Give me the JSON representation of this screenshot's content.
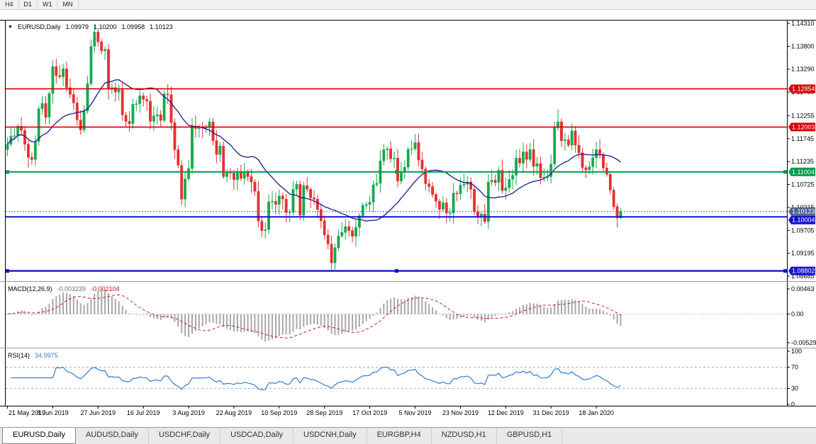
{
  "toolbar": {
    "buttons": [
      {
        "label": "H4"
      },
      {
        "label": "D1"
      },
      {
        "label": "W1"
      },
      {
        "label": "MN"
      }
    ]
  },
  "header": {
    "dropdown_icon": "▼",
    "symbol": "EURUSD,Daily",
    "open": "1.09979",
    "high": "1.10200",
    "low": "1.09958",
    "close": "1.10123"
  },
  "panels": {
    "macd_title": "MACD(12,26,9)",
    "macd_main": "-0.003239",
    "macd_signal": "-0.002104",
    "rsi_title": "RSI(14)",
    "rsi_value": "34.9975"
  },
  "tabs": {
    "items": [
      {
        "label": "EURUSD,Daily",
        "active": true
      },
      {
        "label": "AUDUSD,Daily",
        "active": false
      },
      {
        "label": "USDCHF,Daily",
        "active": false
      },
      {
        "label": "USDCAD,Daily",
        "active": false
      },
      {
        "label": "USDCNH,Daily",
        "active": false
      },
      {
        "label": "EURGBP,H4",
        "active": false
      },
      {
        "label": "NZDUSD,H1",
        "active": false
      },
      {
        "label": "GBPUSD,H1",
        "active": false
      }
    ]
  },
  "colors": {
    "bull": "#17a94f",
    "bear": "#e53030",
    "ma": "#1c1c8f",
    "macd_hist": "#a8a8a8",
    "macd_signal": "#cc2222",
    "rsi": "#2f7ed8",
    "rsi_level": "#9bb4cf",
    "level_red": "#d40000",
    "level_green": "#009a4e",
    "level_blue": "#1213cf",
    "bid": "#50618c",
    "panel_divider": "#9a9a9a"
  },
  "chart_data": {
    "type": "candlestick",
    "title": "EURUSD,Daily",
    "symbol": "EURUSD",
    "timeframe": "Daily",
    "ylim": [
      1.08685,
      1.1431
    ],
    "last_ohlc": {
      "open": 1.09979,
      "high": 1.102,
      "low": 1.09958,
      "close": 1.10123
    },
    "price_axis_labels": [
      "1.14310",
      "1.13800",
      "1.13290",
      "1.12780",
      "1.12255",
      "1.11745",
      "1.11235",
      "1.10725",
      "1.10215",
      "1.09705",
      "1.09195",
      "1.08685"
    ],
    "x_labels": [
      "21 May 2019",
      "8 Jun 2019",
      "27 Jun 2019",
      "16 Jul 2019",
      "3 Aug 2019",
      "22 Aug 2019",
      "10 Sep 2019",
      "28 Sep 2019",
      "17 Oct 2019",
      "5 Nov 2019",
      "23 Nov 2019",
      "12 Dec 2019",
      "31 Dec 2019",
      "18 Jan 2020"
    ],
    "first_open": 1.115,
    "closes": [
      1.1162,
      1.118,
      1.1181,
      1.1202,
      1.1193,
      1.1162,
      1.1133,
      1.1128,
      1.1168,
      1.1241,
      1.1253,
      1.1222,
      1.1275,
      1.1335,
      1.1315,
      1.1312,
      1.133,
      1.1288,
      1.1273,
      1.1254,
      1.1216,
      1.1194,
      1.1236,
      1.1297,
      1.138,
      1.1412,
      1.139,
      1.137,
      1.1373,
      1.1285,
      1.1288,
      1.1278,
      1.1283,
      1.1227,
      1.1213,
      1.1208,
      1.1251,
      1.1252,
      1.127,
      1.1262,
      1.1258,
      1.1213,
      1.1225,
      1.1228,
      1.1215,
      1.1274,
      1.1272,
      1.121,
      1.115,
      1.1115,
      1.104,
      1.1085,
      1.1108,
      1.1202,
      1.1197,
      1.12,
      1.1199,
      1.12,
      1.1212,
      1.117,
      1.1139,
      1.1158,
      1.109,
      1.11,
      1.1098,
      1.1083,
      1.11,
      1.1086,
      1.11,
      1.109,
      1.1078,
      1.1057,
      1.0991,
      1.097,
      1.0972,
      1.1034,
      1.1035,
      1.1028,
      1.1047,
      1.104,
      1.101,
      1.1011,
      1.1062,
      1.1073,
      1.1004,
      1.107,
      1.1062,
      1.1043,
      1.104,
      1.1017,
      1.0992,
      1.096,
      1.094,
      1.0898,
      1.0932,
      1.0958,
      1.0966,
      1.0979,
      1.097,
      1.0957,
      1.0977,
      1.1003,
      1.1026,
      1.1028,
      1.1033,
      1.1072,
      1.1075,
      1.1125,
      1.115,
      1.1152,
      1.113,
      1.1131,
      1.108,
      1.11,
      1.1111,
      1.1151,
      1.1152,
      1.1166,
      1.1127,
      1.1107,
      1.1074,
      1.1068,
      1.105,
      1.1035,
      1.1017,
      1.1032,
      1.1009,
      1.1009,
      1.1053,
      1.1052,
      1.1071,
      1.1073,
      1.1078,
      1.1062,
      1.1012,
      1.1002,
      1.1007,
      1.099,
      1.1078,
      1.1082,
      1.1077,
      1.1104,
      1.1059,
      1.1065,
      1.1084,
      1.1093,
      1.1131,
      1.112,
      1.1145,
      1.1128,
      1.115,
      1.1113,
      1.1119,
      1.1087,
      1.1088,
      1.109,
      1.1118,
      1.1199,
      1.1212,
      1.117,
      1.1172,
      1.116,
      1.1192,
      1.116,
      1.1143,
      1.111,
      1.1105,
      1.1112,
      1.1132,
      1.115,
      1.1139,
      1.1109,
      1.1095,
      1.106,
      1.1023,
      1.09979,
      1.10123
    ],
    "wick_overrides": {
      "25": {
        "high": 1.1428
      },
      "50": {
        "low": 1.1027
      },
      "93": {
        "low": 1.0879
      },
      "158": {
        "high": 1.1239
      },
      "176": {
        "high": 1.102,
        "low": 1.09958
      }
    },
    "overlays": {
      "sma_period": 20
    },
    "hlines": [
      {
        "label": "1.12854",
        "value": 1.12854,
        "color_key": "level_red",
        "width": 1.6,
        "selected": false
      },
      {
        "label": "1.12003",
        "value": 1.12003,
        "color_key": "level_red",
        "width": 1.6,
        "selected": false
      },
      {
        "label": "1.11004",
        "value": 1.11004,
        "color_key": "level_green",
        "width": 2,
        "selected": true
      },
      {
        "label": "1.10004",
        "value": 1.10004,
        "color_key": "level_blue",
        "width": 2,
        "selected": false
      },
      {
        "label": "1.08802",
        "value": 1.08802,
        "color_key": "level_blue",
        "width": 2.4,
        "selected": true
      }
    ],
    "bid_line": {
      "label": "1.10123",
      "value": 1.10123,
      "color_key": "bid"
    },
    "macd": {
      "name": "MACD",
      "fast": 12,
      "slow": 26,
      "signal": 9,
      "last_main": -0.003239,
      "last_signal": -0.002104,
      "axis_labels": [
        {
          "label": "0.00463",
          "value": 0.00463
        },
        {
          "label": "0.00",
          "value": 0
        },
        {
          "label": "-0.00529",
          "value": -0.00529
        }
      ]
    },
    "rsi": {
      "name": "RSI",
      "period": 14,
      "last_value": 34.9975,
      "levels": [
        70,
        30
      ],
      "axis_labels": [
        {
          "label": "100",
          "value": 100
        },
        {
          "label": "70",
          "value": 70
        },
        {
          "label": "30",
          "value": 30
        },
        {
          "label": "0",
          "value": 0
        }
      ]
    }
  }
}
